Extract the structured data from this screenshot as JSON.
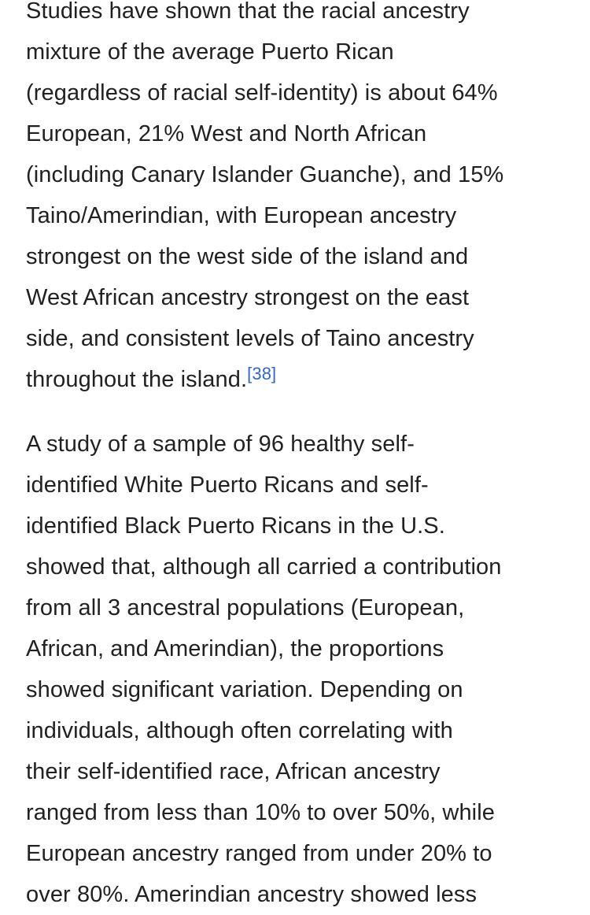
{
  "page": {
    "background_color": "#ffffff",
    "text_color": "#202122",
    "link_color": "#3366cc"
  },
  "article": {
    "paragraphs": [
      {
        "text": "Studies have shown that the racial ancestry\nmixture of the average Puerto Rican\n(regardless of racial self-identity) is about 64%\nEuropean, 21% West and North African\n(including Canary Islander Guanche), and 15%\nTaino/Amerindian, with European ancestry\nstrongest on the west side of the island and\nWest African ancestry strongest on the east\nside, and consistent levels of Taino ancestry\nthroughout the island.",
        "citation": "[38]"
      },
      {
        "text": "A study of a sample of 96 healthy self-\nidentified White Puerto Ricans and self-\nidentified Black Puerto Ricans in the U.S.\nshowed that, although all carried a contribution\nfrom all 3 ancestral populations (European,\nAfrican, and Amerindian), the proportions\nshowed significant variation. Depending on\nindividuals, although often correlating with\ntheir self-identified race, African ancestry\nranged from less than 10% to over 50%, while\nEuropean ancestry ranged from under 20% to\nover 80%. Amerindian ancestry showed less"
      }
    ]
  }
}
